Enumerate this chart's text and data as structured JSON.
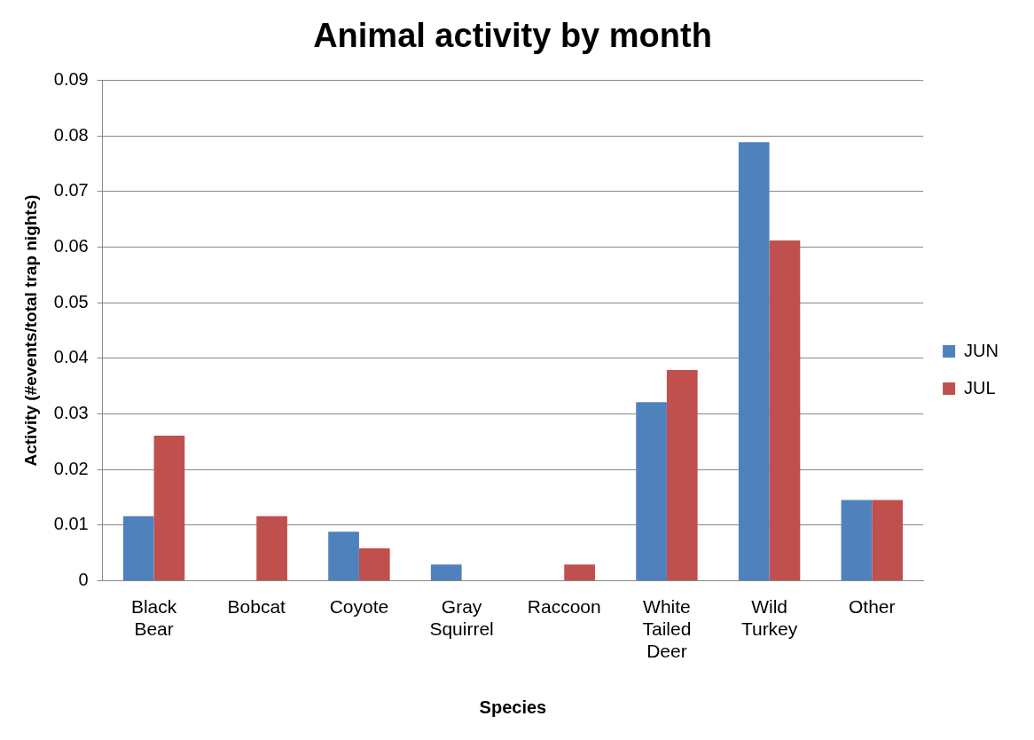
{
  "chart_data": {
    "type": "bar",
    "title": "Animal activity by month",
    "xlabel": "Species",
    "ylabel": "Activity (#events/total trap nights)",
    "categories": [
      "Black Bear",
      "Bobcat",
      "Coyote",
      "Gray Squirrel",
      "Raccoon",
      "White Tailed Deer",
      "Wild Turkey",
      "Other"
    ],
    "series": [
      {
        "name": "JUN",
        "color": "#4f81bd",
        "values": [
          0.0116,
          0,
          0.0088,
          0.0029,
          0,
          0.0321,
          0.0789,
          0.0145
        ]
      },
      {
        "name": "JUL",
        "color": "#c0504d",
        "values": [
          0.0261,
          0.0116,
          0.0058,
          0,
          0.0029,
          0.0379,
          0.0612,
          0.0145
        ]
      }
    ],
    "ylim": [
      0,
      0.09
    ],
    "yticks": [
      0,
      0.01,
      0.02,
      0.03,
      0.04,
      0.05,
      0.06,
      0.07,
      0.08,
      0.09
    ],
    "grid": "y",
    "legend": "right"
  }
}
